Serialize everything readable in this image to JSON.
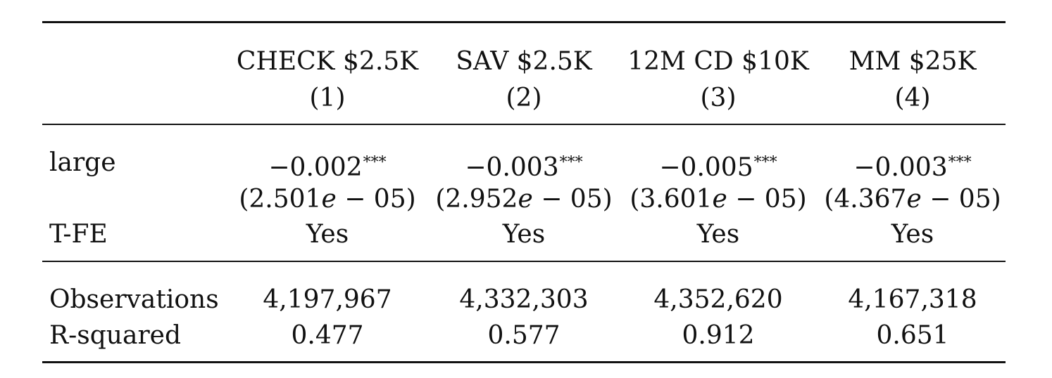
{
  "table": {
    "columns": [
      {
        "header": "CHECK $2.5K",
        "number": "(1)"
      },
      {
        "header": "SAV $2.5K",
        "number": "(2)"
      },
      {
        "header": "12M CD $10K",
        "number": "(3)"
      },
      {
        "header": "MM $25K",
        "number": "(4)"
      }
    ],
    "rows": {
      "large": {
        "label": "large",
        "coef": [
          "−0.002",
          "−0.003",
          "−0.005",
          "−0.003"
        ],
        "stars": [
          "***",
          "***",
          "***",
          "***"
        ],
        "se": [
          {
            "open": "(2.501",
            "mid": "e",
            "close": " − 05)"
          },
          {
            "open": "(2.952",
            "mid": "e",
            "close": " − 05)"
          },
          {
            "open": "(3.601",
            "mid": "e",
            "close": " − 05)"
          },
          {
            "open": "(4.367",
            "mid": "e",
            "close": " − 05)"
          }
        ]
      },
      "tfe": {
        "label": "T-FE",
        "values": [
          "Yes",
          "Yes",
          "Yes",
          "Yes"
        ]
      },
      "observations": {
        "label": "Observations",
        "values": [
          "4,197,967",
          "4,332,303",
          "4,352,620",
          "4,167,318"
        ]
      },
      "rsquared": {
        "label": "R-squared",
        "values": [
          "0.477",
          "0.577",
          "0.912",
          "0.651"
        ]
      }
    }
  }
}
